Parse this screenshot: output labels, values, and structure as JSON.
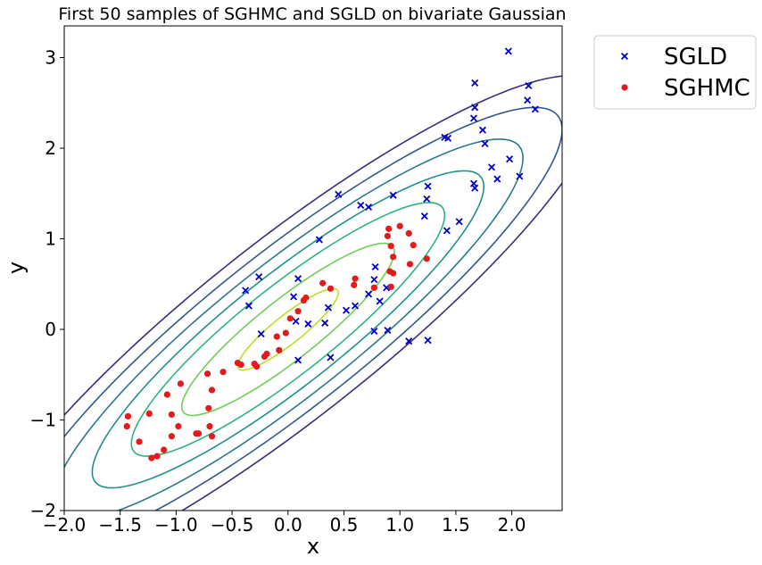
{
  "chart_data": {
    "type": "scatter",
    "title": "First 50 samples of SGHMC and SGLD on bivariate Gaussian",
    "xlabel": "x",
    "ylabel": "y",
    "xlim": [
      -2.0,
      2.45
    ],
    "ylim": [
      -2.0,
      3.35
    ],
    "x_ticks": [
      -2.0,
      -1.5,
      -1.0,
      -0.5,
      0.0,
      0.5,
      1.0,
      1.5,
      2.0
    ],
    "x_tick_labels": [
      "−2.0",
      "−1.5",
      "−1.0",
      "−0.5",
      "0.0",
      "0.5",
      "1.0",
      "1.5",
      "2.0"
    ],
    "y_ticks": [
      -2,
      -1,
      0,
      1,
      2,
      3
    ],
    "y_tick_labels": [
      "−2",
      "−1",
      "0",
      "1",
      "2",
      "3"
    ],
    "grid": false,
    "legend_position": "outside-top-right",
    "contours": {
      "center": [
        0,
        0
      ],
      "covariance": [
        [
          1.0,
          0.9
        ],
        [
          0.9,
          1.0
        ]
      ],
      "mahalanobis_levels": [
        2.8,
        2.45,
        2.1,
        1.75,
        1.4,
        0.95,
        0.45
      ],
      "colors": [
        "#3b2d7c",
        "#33598c",
        "#2c788e",
        "#21918c",
        "#2fb47c",
        "#6ece58",
        "#bddf26"
      ]
    },
    "series": [
      {
        "name": "SGLD",
        "marker": "x",
        "color": "#0000cc",
        "points": [
          [
            0.45,
            1.49
          ],
          [
            0.65,
            1.37
          ],
          [
            0.72,
            1.35
          ],
          [
            0.94,
            1.48
          ],
          [
            1.25,
            1.58
          ],
          [
            1.24,
            1.44
          ],
          [
            1.22,
            1.25
          ],
          [
            1.42,
            1.09
          ],
          [
            1.53,
            1.19
          ],
          [
            1.66,
            1.61
          ],
          [
            1.67,
            1.56
          ],
          [
            1.87,
            1.66
          ],
          [
            1.98,
            1.88
          ],
          [
            2.07,
            1.69
          ],
          [
            1.82,
            1.79
          ],
          [
            1.76,
            2.05
          ],
          [
            1.74,
            2.2
          ],
          [
            1.66,
            2.33
          ],
          [
            1.67,
            2.45
          ],
          [
            1.67,
            2.72
          ],
          [
            1.97,
            3.07
          ],
          [
            2.15,
            2.69
          ],
          [
            2.14,
            2.53
          ],
          [
            2.21,
            2.43
          ],
          [
            1.4,
            2.12
          ],
          [
            1.43,
            2.11
          ],
          [
            0.28,
            0.99
          ],
          [
            -0.26,
            0.58
          ],
          [
            -0.38,
            0.43
          ],
          [
            -0.35,
            0.26
          ],
          [
            0.09,
            0.56
          ],
          [
            0.05,
            0.36
          ],
          [
            0.07,
            0.09
          ],
          [
            0.18,
            0.06
          ],
          [
            0.33,
            0.07
          ],
          [
            0.36,
            0.24
          ],
          [
            0.52,
            0.21
          ],
          [
            0.6,
            0.26
          ],
          [
            0.72,
            0.39
          ],
          [
            0.78,
            0.69
          ],
          [
            0.77,
            0.55
          ],
          [
            0.82,
            0.31
          ],
          [
            0.88,
            0.46
          ],
          [
            0.77,
            -0.02
          ],
          [
            0.89,
            -0.01
          ],
          [
            1.08,
            -0.13
          ],
          [
            1.25,
            -0.12
          ],
          [
            0.38,
            -0.31
          ],
          [
            0.09,
            -0.34
          ],
          [
            -0.24,
            -0.05
          ]
        ]
      },
      {
        "name": "SGHMC",
        "marker": "o",
        "color": "#e41a1c",
        "points": [
          [
            0.9,
            1.11
          ],
          [
            1.0,
            1.14
          ],
          [
            1.08,
            1.06
          ],
          [
            0.89,
            1.03
          ],
          [
            0.92,
            0.92
          ],
          [
            1.12,
            0.93
          ],
          [
            1.24,
            0.78
          ],
          [
            0.94,
            0.8
          ],
          [
            1.09,
            0.72
          ],
          [
            0.91,
            0.64
          ],
          [
            0.94,
            0.62
          ],
          [
            0.6,
            0.56
          ],
          [
            0.59,
            0.49
          ],
          [
            0.31,
            0.51
          ],
          [
            0.77,
            0.46
          ],
          [
            0.92,
            0.47
          ],
          [
            0.38,
            0.45
          ],
          [
            0.16,
            0.35
          ],
          [
            0.14,
            0.32
          ],
          [
            0.09,
            0.2
          ],
          [
            0.02,
            0.12
          ],
          [
            -0.02,
            -0.04
          ],
          [
            -0.1,
            -0.08
          ],
          [
            -0.08,
            -0.23
          ],
          [
            -0.19,
            -0.27
          ],
          [
            -0.21,
            -0.3
          ],
          [
            -0.3,
            -0.38
          ],
          [
            -0.28,
            -0.41
          ],
          [
            -0.45,
            -0.37
          ],
          [
            -0.42,
            -0.39
          ],
          [
            -0.58,
            -0.47
          ],
          [
            -0.72,
            -0.49
          ],
          [
            -0.96,
            -0.6
          ],
          [
            -0.68,
            -0.67
          ],
          [
            -1.08,
            -0.72
          ],
          [
            -0.71,
            -0.87
          ],
          [
            -1.24,
            -0.93
          ],
          [
            -1.43,
            -0.96
          ],
          [
            -1.04,
            -0.94
          ],
          [
            -0.98,
            -1.07
          ],
          [
            -0.7,
            -1.07
          ],
          [
            -1.44,
            -1.07
          ],
          [
            -0.8,
            -1.15
          ],
          [
            -1.04,
            -1.18
          ],
          [
            -0.68,
            -1.18
          ],
          [
            -1.33,
            -1.24
          ],
          [
            -1.11,
            -1.33
          ],
          [
            -1.17,
            -1.4
          ],
          [
            -1.22,
            -1.42
          ],
          [
            -0.82,
            -1.15
          ]
        ]
      }
    ]
  }
}
